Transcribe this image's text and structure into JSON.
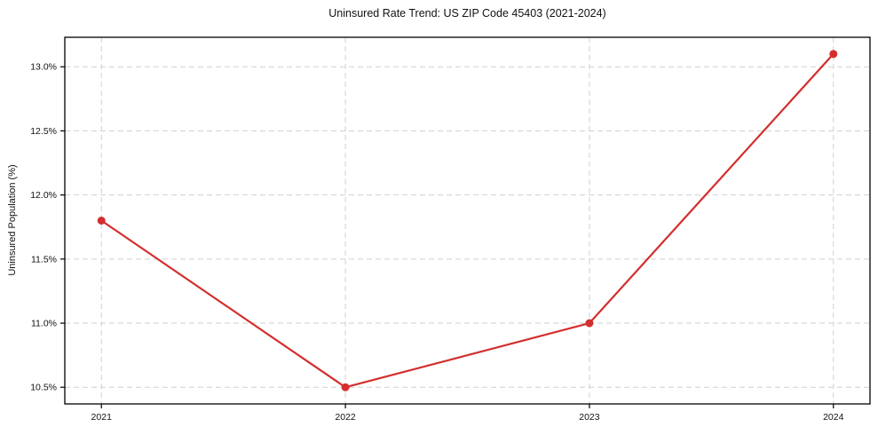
{
  "chart_data": {
    "type": "line",
    "title": "Uninsured Rate Trend: US ZIP Code 45403 (2021-2024)",
    "xlabel": "",
    "ylabel": "Uninsured Population (%)",
    "x": [
      2021,
      2022,
      2023,
      2024
    ],
    "x_tick_labels": [
      "2021",
      "2022",
      "2023",
      "2024"
    ],
    "series": [
      {
        "name": "uninsured-rate",
        "values": [
          11.8,
          10.5,
          11.0,
          13.1
        ],
        "color": "#d32f2f",
        "marker": "circle"
      }
    ],
    "y_ticks": [
      10.5,
      11.0,
      11.5,
      12.0,
      12.5,
      13.0
    ],
    "y_tick_labels": [
      "10.5%",
      "11.0%",
      "11.5%",
      "12.0%",
      "12.5%",
      "13.0%"
    ],
    "xlim": [
      2020.85,
      2024.15
    ],
    "ylim": [
      10.37,
      13.23
    ],
    "grid": "dashed",
    "grid_color": "#cfcfcf",
    "legend": "none"
  }
}
